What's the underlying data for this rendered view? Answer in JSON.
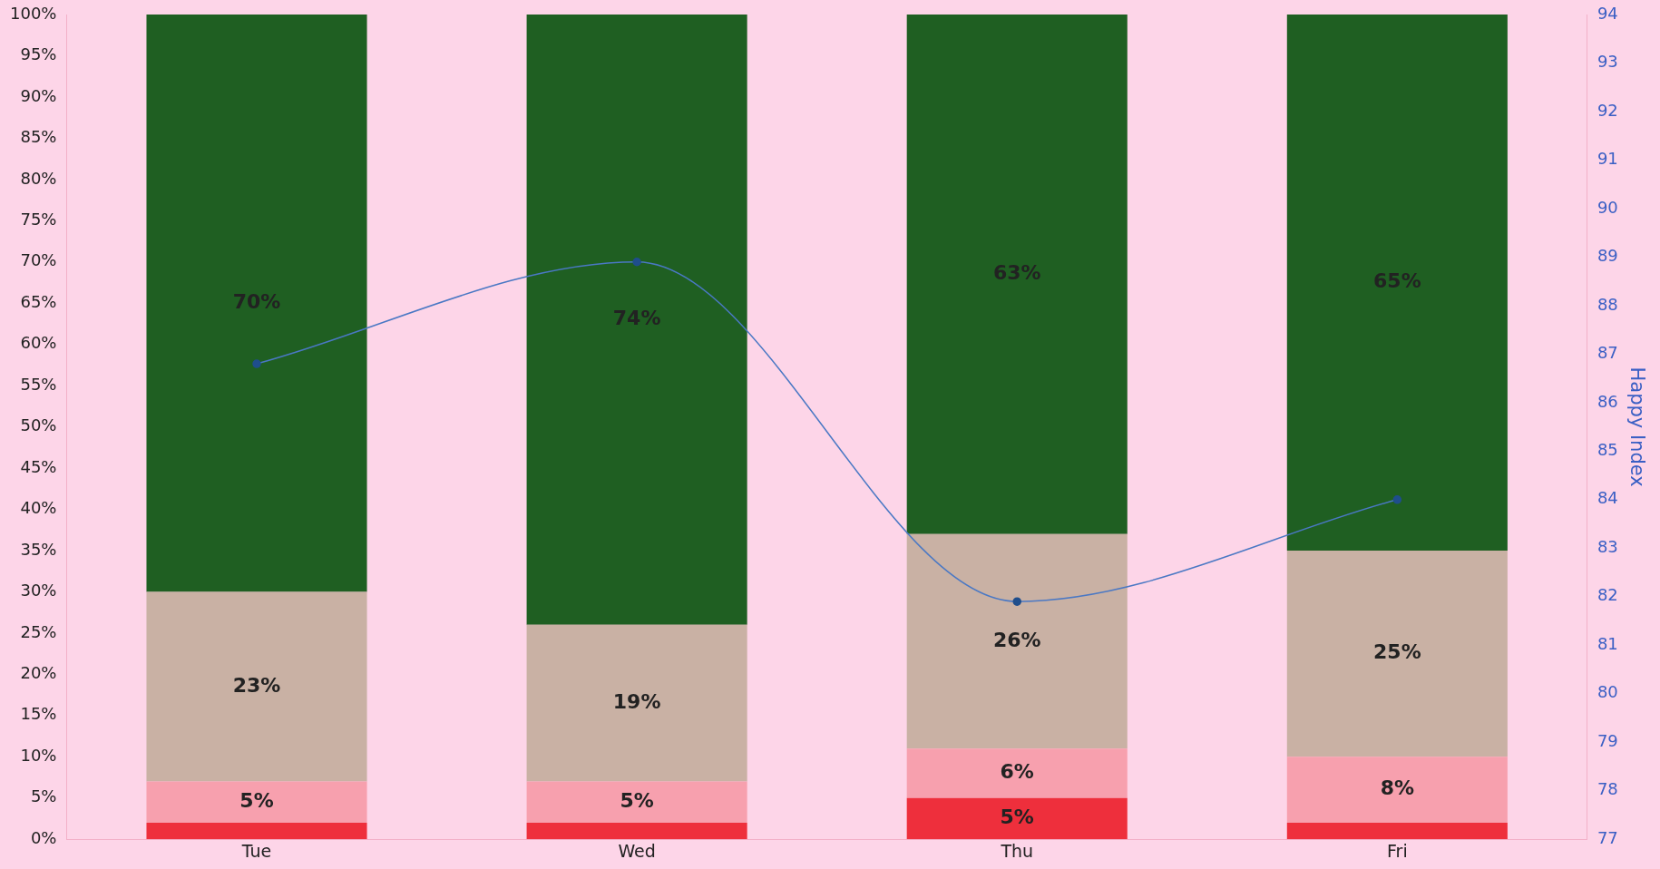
{
  "chart_data": {
    "type": "bar",
    "stacked": true,
    "categories": [
      "Tue",
      "Wed",
      "Thu",
      "Fri"
    ],
    "series": [
      {
        "color": "#ee2f3c",
        "values": [
          2,
          2,
          5,
          2
        ],
        "value_labels": [
          null,
          null,
          "5%",
          null
        ]
      },
      {
        "color": "#f7a0ae",
        "values": [
          5,
          5,
          6,
          8
        ],
        "value_labels": [
          "5%",
          "5%",
          "6%",
          "8%"
        ]
      },
      {
        "color": "#c9b1a4",
        "values": [
          23,
          19,
          26,
          25
        ],
        "value_labels": [
          "23%",
          "19%",
          "26%",
          "25%"
        ]
      },
      {
        "color": "#1f5f22",
        "values": [
          70,
          74,
          63,
          65
        ],
        "value_labels": [
          "70%",
          "74%",
          "63%",
          "65%"
        ]
      },
      {
        "type": "line",
        "axis": "y2",
        "color": "#4a78c4",
        "values": [
          86.8,
          88.9,
          81.9,
          84.0
        ],
        "marker": "circle",
        "line_style": "solid"
      }
    ],
    "ylim": [
      0,
      100
    ],
    "yticks": [
      {
        "value": 0,
        "label": "0%"
      },
      {
        "value": 5,
        "label": "5%"
      },
      {
        "value": 10,
        "label": "10%"
      },
      {
        "value": 15,
        "label": "15%"
      },
      {
        "value": 20,
        "label": "20%"
      },
      {
        "value": 25,
        "label": "25%"
      },
      {
        "value": 30,
        "label": "30%"
      },
      {
        "value": 35,
        "label": "35%"
      },
      {
        "value": 40,
        "label": "40%"
      },
      {
        "value": 45,
        "label": "45%"
      },
      {
        "value": 50,
        "label": "50%"
      },
      {
        "value": 55,
        "label": "55%"
      },
      {
        "value": 60,
        "label": "60%"
      },
      {
        "value": 65,
        "label": "65%"
      },
      {
        "value": 70,
        "label": "70%"
      },
      {
        "value": 75,
        "label": "75%"
      },
      {
        "value": 80,
        "label": "80%"
      },
      {
        "value": 85,
        "label": "85%"
      },
      {
        "value": 90,
        "label": "90%"
      },
      {
        "value": 95,
        "label": "95%"
      },
      {
        "value": 100,
        "label": "100%"
      }
    ],
    "y2lim": [
      77,
      94
    ],
    "y2ticks": [
      77,
      78,
      79,
      80,
      81,
      82,
      83,
      84,
      85,
      86,
      87,
      88,
      89,
      90,
      91,
      92,
      93,
      94
    ],
    "y2label": "Happy Index",
    "grid": false,
    "legend": false
  }
}
